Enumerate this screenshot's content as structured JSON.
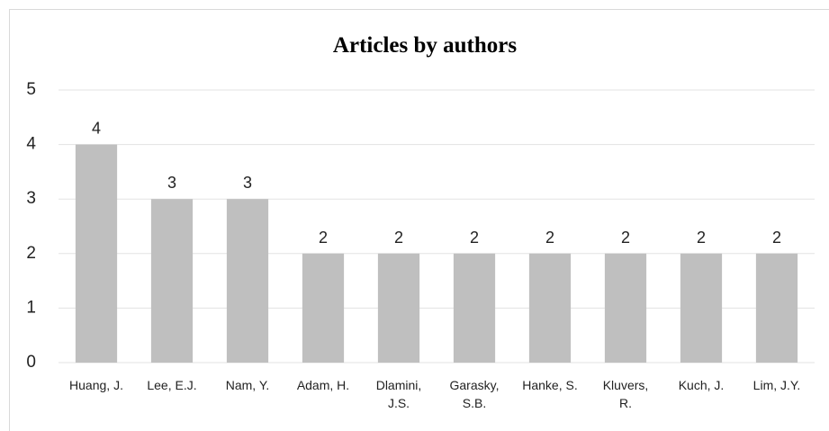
{
  "chart_data": {
    "type": "bar",
    "title": "Articles by authors",
    "categories": [
      "Huang, J.",
      "Lee, E.J.",
      "Nam, Y.",
      "Adam, H.",
      "Dlamini, J.S.",
      "Garasky, S.B.",
      "Hanke, S.",
      "Kluvers, R.",
      "Kuch, J.",
      "Lim, J.Y."
    ],
    "values": [
      4,
      3,
      3,
      2,
      2,
      2,
      2,
      2,
      2,
      2
    ],
    "color": "#bfbfbf",
    "ylim": [
      0,
      5
    ],
    "yticks": [
      0,
      1,
      2,
      3,
      4,
      5
    ],
    "grid": true,
    "data_labels": true
  }
}
